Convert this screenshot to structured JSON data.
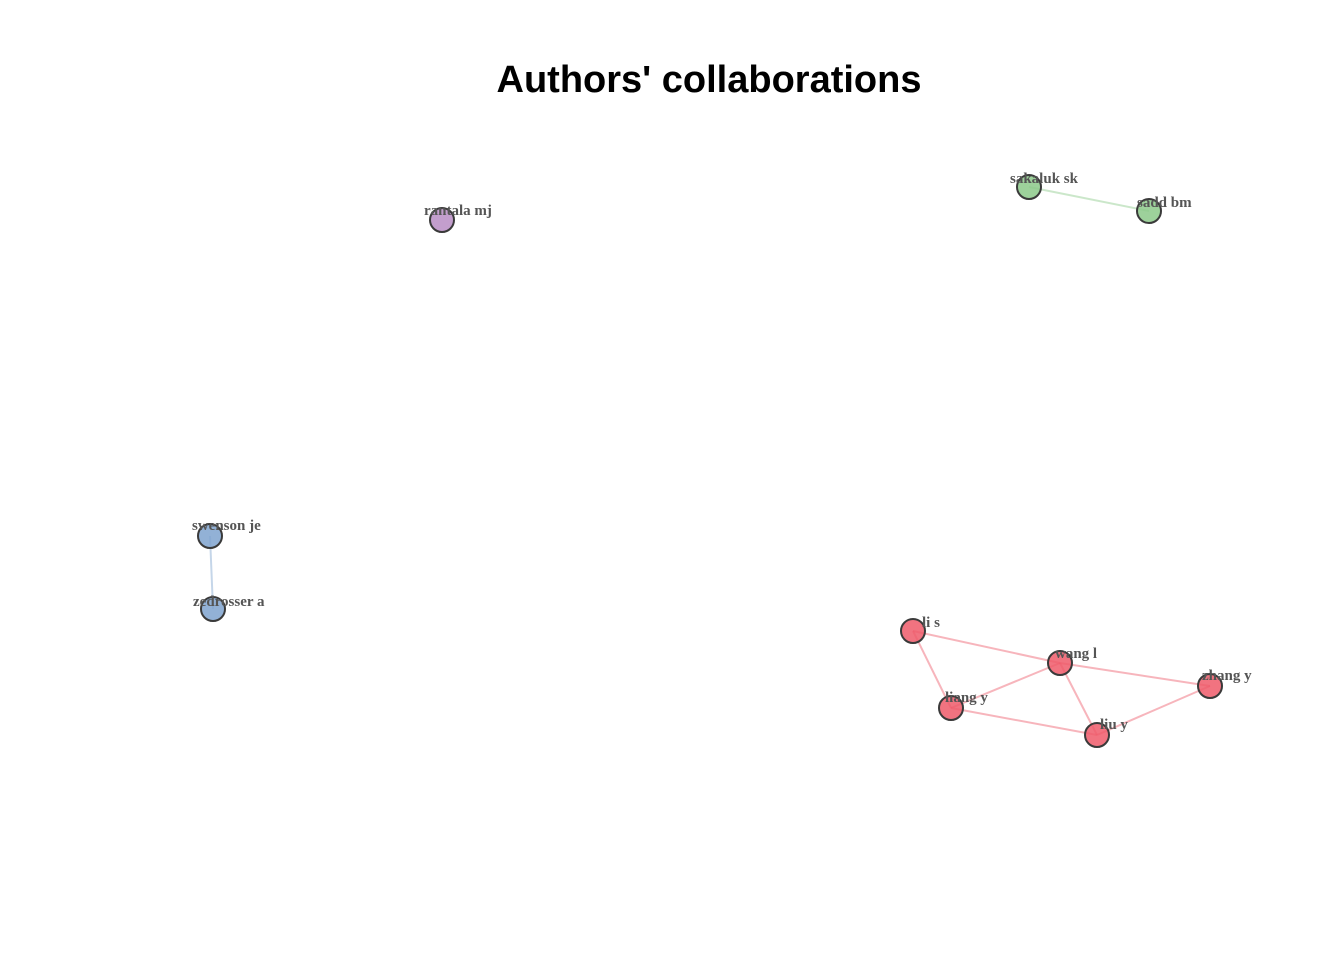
{
  "title": "Authors' collaborations",
  "clusters": [
    {
      "id": "red",
      "color": "#ee5a6a"
    },
    {
      "id": "blue",
      "color": "#7fa3cf"
    },
    {
      "id": "green",
      "color": "#8cc98a"
    },
    {
      "id": "purple",
      "color": "#b98dc4"
    }
  ],
  "nodes": [
    {
      "id": "li-s",
      "label": "li s",
      "cluster": "red"
    },
    {
      "id": "wang-l",
      "label": "wang l",
      "cluster": "red"
    },
    {
      "id": "zhang-y",
      "label": "zhang y",
      "cluster": "red"
    },
    {
      "id": "liang-y",
      "label": "liang y",
      "cluster": "red"
    },
    {
      "id": "liu-y",
      "label": "liu y",
      "cluster": "red"
    },
    {
      "id": "swenson-je",
      "label": "swenson je",
      "cluster": "blue"
    },
    {
      "id": "zedrosser-a",
      "label": "zedrosser a",
      "cluster": "blue"
    },
    {
      "id": "sakaluk-sk",
      "label": "sakaluk sk",
      "cluster": "green"
    },
    {
      "id": "sadd-bm",
      "label": "sadd bm",
      "cluster": "green"
    },
    {
      "id": "rantala-mj",
      "label": "rantala mj",
      "cluster": "purple"
    }
  ],
  "edges": [
    {
      "source": "li-s",
      "target": "wang-l"
    },
    {
      "source": "li-s",
      "target": "liang-y"
    },
    {
      "source": "wang-l",
      "target": "liang-y"
    },
    {
      "source": "wang-l",
      "target": "zhang-y"
    },
    {
      "source": "wang-l",
      "target": "liu-y"
    },
    {
      "source": "liang-y",
      "target": "liu-y"
    },
    {
      "source": "liu-y",
      "target": "zhang-y"
    },
    {
      "source": "swenson-je",
      "target": "zedrosser-a"
    },
    {
      "source": "sakaluk-sk",
      "target": "sadd-bm"
    }
  ]
}
